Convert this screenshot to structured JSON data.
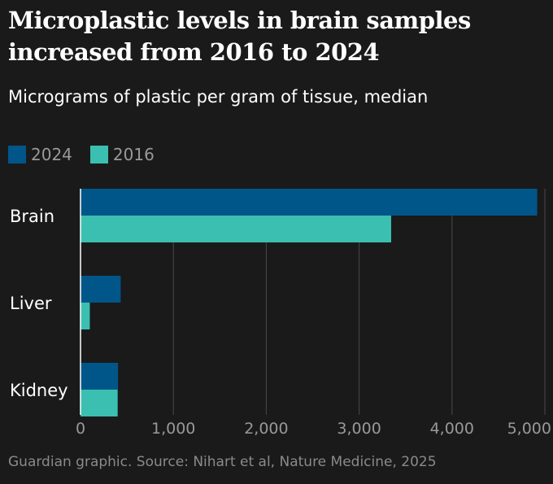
{
  "title": "Microplastic levels in brain samples increased from 2016 to 2024",
  "subtitle": "Micrograms of plastic per gram of tissue, median",
  "source": "Guardian graphic. Source: Nihart et al, Nature Medicine, 2025",
  "colors": {
    "s2024": "#005689",
    "s2016": "#3bbfb1",
    "background": "#1a1a1a",
    "grid": "#4a4a4a"
  },
  "chart_data": {
    "type": "bar",
    "orientation": "horizontal",
    "categories": [
      "Brain",
      "Liver",
      "Kidney"
    ],
    "series": [
      {
        "name": "2024",
        "values": [
          4917,
          433,
          404
        ]
      },
      {
        "name": "2016",
        "values": [
          3345,
          100,
          400
        ]
      }
    ],
    "xlim": [
      0,
      5000
    ],
    "xticks": [
      0,
      1000,
      2000,
      3000,
      4000,
      5000
    ],
    "xtick_labels": [
      "0",
      "1,000",
      "2,000",
      "3,000",
      "4,000",
      "5,000"
    ],
    "xlabel": "",
    "ylabel": "",
    "grid": true,
    "legend": "top-left"
  }
}
